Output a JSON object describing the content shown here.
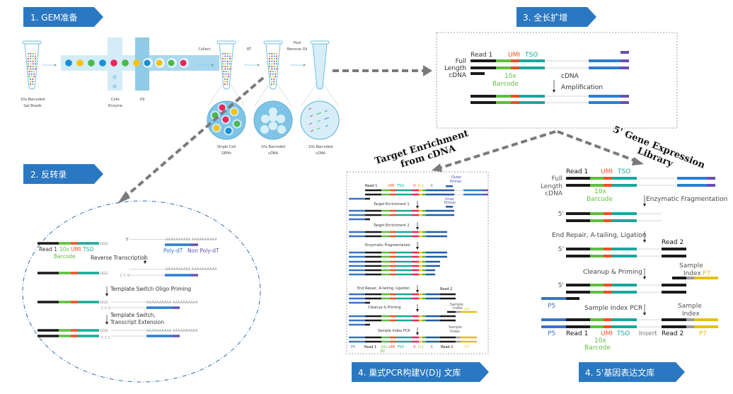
{
  "banners": {
    "s1": "1. GEM准备",
    "s2": "2. 反转录",
    "s3": "3. 全长扩增",
    "s4": "4. 巢式PCR构建V(D)J 文库",
    "s5": "4. 5'基因表达文库"
  },
  "gem": {
    "gel_beads": [
      "10x Barcoded",
      "Gel Beads"
    ],
    "cells": [
      "Cells",
      "Enzyme"
    ],
    "oil": "Oil",
    "collect": "Collect",
    "rt": "RT",
    "pool": [
      "Pool",
      "Remove Oil"
    ],
    "gems": [
      "Single Cell",
      "GEMs"
    ],
    "cdna_a": [
      "10x Barcoded",
      "cDNA"
    ],
    "cdna_b": [
      "10x Barcoded",
      "cDNA"
    ]
  },
  "rt": {
    "read1": "Read 1",
    "tenx": "10x",
    "barcode": "Barcode",
    "umi": "UMI",
    "tso": "TSO",
    "five": "5'",
    "polydt": "Poly-dT",
    "nonpolydt": "Non Poly-dT",
    "ggg": "GGG",
    "ccc": "C C C",
    "polya": "AAAAAAAAAA AAAAAAAAAA",
    "step1": "Reverse Transcription",
    "step2": "Template Switch Oligo Priming",
    "step3": [
      "Template Switch,",
      "Transcript Extension"
    ]
  },
  "amp": {
    "read1": "Read 1",
    "umi": "UMI",
    "tso": "TSO",
    "full": [
      "Full",
      "Length",
      "cDNA"
    ],
    "tenx": "10x",
    "barcode": "Barcode",
    "step": [
      "cDNA",
      "Amplification"
    ]
  },
  "branch_labels": {
    "left": [
      "Target Enrichment",
      "from  cDNA"
    ],
    "right": [
      "5' Gene Expression",
      "Library"
    ]
  },
  "vdj": {
    "read1": "Read 1",
    "umi": "UMI",
    "tso": "TSO",
    "v": "V",
    "d": "D",
    "j": "J",
    "c": "C",
    "outer": [
      "Outer",
      "Primer"
    ],
    "inner": [
      "Inner",
      "Primer"
    ],
    "steps": [
      "Target Enrichment 1",
      "Target Enrichment 2",
      "Enzymatic Fragmentation",
      "End Repair, A-tailing, Ligation",
      "Cleanup & Priming",
      "Sample Index PCR"
    ],
    "read2": "Read 2",
    "sample_index": [
      "Sample",
      "Index"
    ],
    "p7": "P7",
    "p5": "P5",
    "tenx": "10x",
    "bc": "BC"
  },
  "gex": {
    "read1": "Read 1",
    "umi": "UMI",
    "tso": "TSO",
    "full": [
      "Full",
      "Length",
      "cDNA"
    ],
    "tenx": "10x",
    "barcode": "Barcode",
    "five": "5'",
    "steps": [
      "Enzymatic Fragmentation",
      "End Repair, A-tailing, Ligation",
      "Cleanup & Priming",
      "Sample Index PCR"
    ],
    "read2": "Read 2",
    "sample_index": [
      "Sample",
      "Index"
    ],
    "p7": "P7",
    "p5": "P5",
    "insert": "Insert"
  },
  "colors": {
    "banner": "#2b78c2",
    "read1": "#1a1a1a",
    "barcode": "#5cbf3c",
    "umi": "#f04e23",
    "tso": "#17a89a",
    "polydt": "#2a7fd0",
    "nonpolydt": "#6a4fb0",
    "v": "#e8275a",
    "d": "#f2c418",
    "j": "#4cb84c",
    "c": "#1f5aa8",
    "p7": "#e8c010",
    "index": "#999999",
    "p5": "#3a73c4",
    "arrow": "#7a7a7a"
  }
}
